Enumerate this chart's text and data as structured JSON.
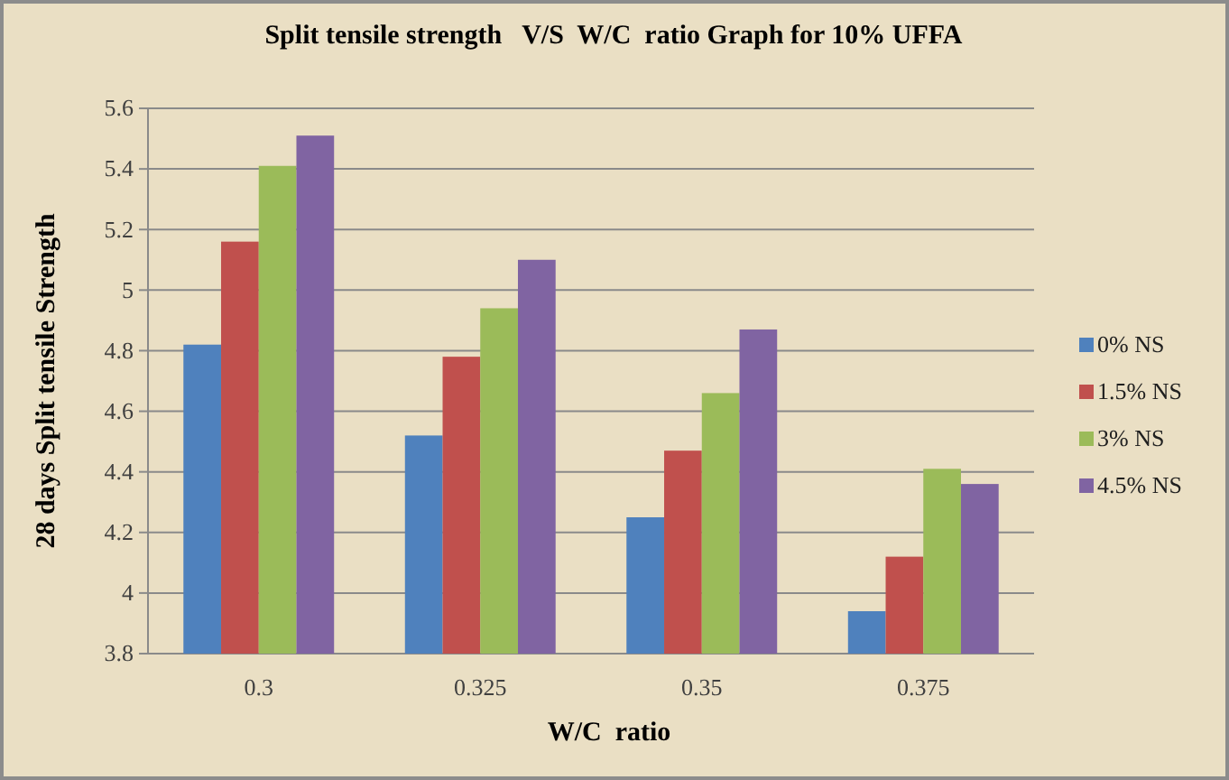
{
  "chart_data": {
    "type": "bar",
    "title": "Split tensile strength   V/S  W/C  ratio Graph for 10% UFFA",
    "xlabel": "W/C  ratio",
    "ylabel": "28 days Split tensile Strength",
    "categories": [
      "0.3",
      "0.325",
      "0.35",
      "0.375"
    ],
    "series": [
      {
        "name": "0% NS",
        "color": "#4f81bd",
        "values": [
          4.82,
          4.52,
          4.25,
          3.94
        ]
      },
      {
        "name": "1.5% NS",
        "color": "#c0504d",
        "values": [
          5.16,
          4.78,
          4.47,
          4.12
        ]
      },
      {
        "name": "3% NS",
        "color": "#9bbb59",
        "values": [
          5.41,
          4.94,
          4.66,
          4.41
        ]
      },
      {
        "name": "4.5% NS",
        "color": "#8064a2",
        "values": [
          5.51,
          5.1,
          4.87,
          4.36
        ]
      }
    ],
    "ylim": [
      3.8,
      5.6
    ],
    "yticks": [
      3.8,
      4,
      4.2,
      4.4,
      4.6,
      4.8,
      5,
      5.2,
      5.4,
      5.6
    ],
    "grid": "y",
    "legend": "right"
  }
}
